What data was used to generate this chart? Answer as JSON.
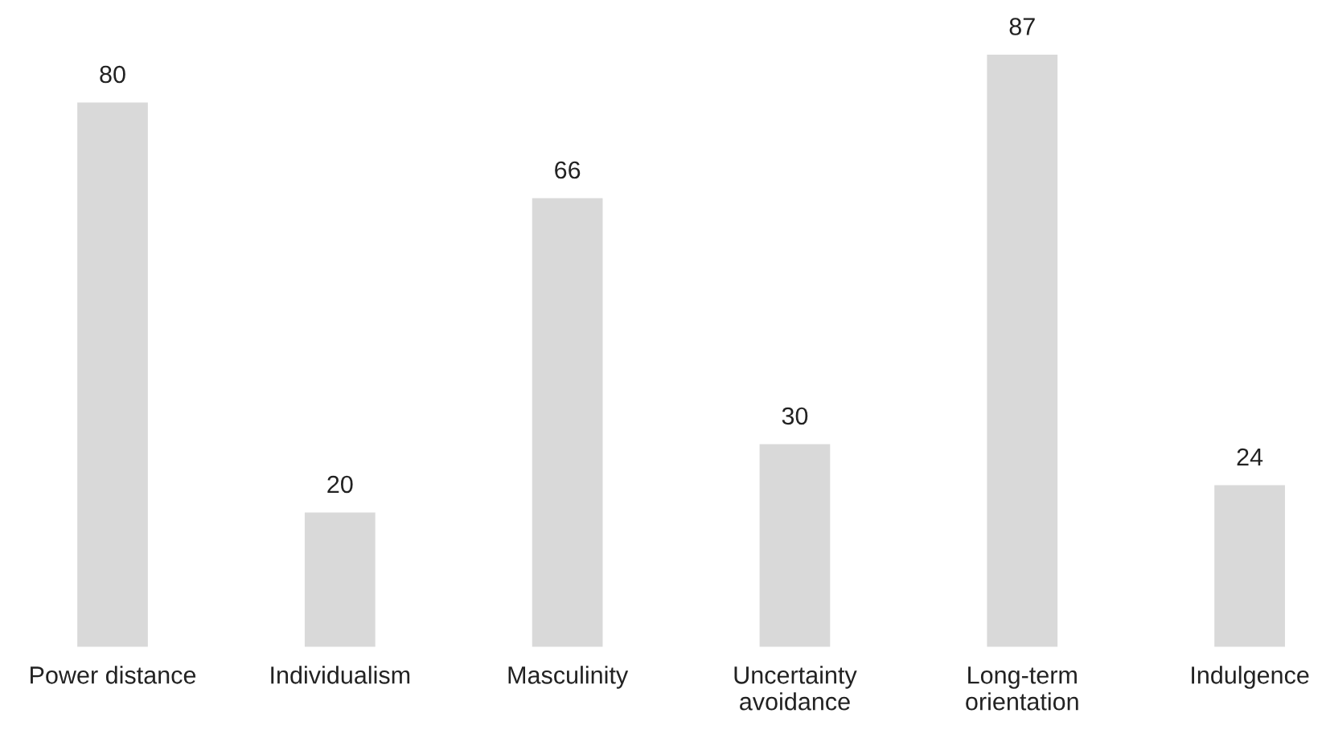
{
  "chart_data": {
    "type": "bar",
    "categories": [
      "Power distance",
      "Individualism",
      "Masculinity",
      "Uncertainty\navoidance",
      "Long-term\norientation",
      "Indulgence"
    ],
    "values": [
      80,
      20,
      66,
      30,
      87,
      24
    ],
    "color": "#d9d9d9",
    "data_labels": true,
    "grid": false,
    "legend": false
  }
}
